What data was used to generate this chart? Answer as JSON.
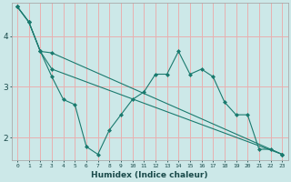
{
  "xlabel": "Humidex (Indice chaleur)",
  "background_color": "#cce8e8",
  "grid_color": "#e8b0b0",
  "line_color": "#1a7a6e",
  "xlim": [
    -0.5,
    23.5
  ],
  "ylim": [
    1.55,
    4.65
  ],
  "yticks": [
    2,
    3,
    4
  ],
  "xticks": [
    0,
    1,
    2,
    3,
    4,
    5,
    6,
    7,
    8,
    9,
    10,
    11,
    12,
    13,
    14,
    15,
    16,
    17,
    18,
    19,
    20,
    21,
    22,
    23
  ],
  "line1_x": [
    0,
    1,
    2,
    3,
    4,
    5,
    6,
    7,
    8,
    9,
    10,
    11,
    12,
    13,
    14,
    15,
    16,
    17,
    18,
    19,
    20,
    21,
    22,
    23
  ],
  "line1_y": [
    4.58,
    4.28,
    3.7,
    3.2,
    2.75,
    2.65,
    1.82,
    1.67,
    2.15,
    2.45,
    2.75,
    2.9,
    3.25,
    3.25,
    3.7,
    3.25,
    3.35,
    3.2,
    2.7,
    2.45,
    2.45,
    1.77,
    1.77,
    1.67
  ],
  "line2_x": [
    0,
    1,
    2,
    3,
    23
  ],
  "line2_y": [
    4.58,
    4.28,
    3.7,
    3.67,
    1.67
  ],
  "line3_x": [
    0,
    1,
    2,
    3,
    23
  ],
  "line3_y": [
    4.58,
    4.28,
    3.7,
    3.35,
    1.67
  ]
}
